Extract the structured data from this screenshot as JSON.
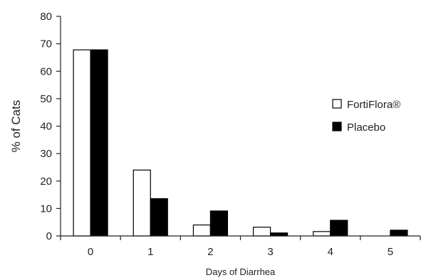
{
  "chart_data": {
    "type": "bar",
    "title": "",
    "xlabel": "Days of Diarrhea",
    "ylabel": "% of Cats",
    "ylim": [
      0,
      80
    ],
    "yticks": [
      0,
      10,
      20,
      30,
      40,
      50,
      60,
      70,
      80
    ],
    "categories": [
      "0",
      "1",
      "2",
      "3",
      "4",
      "5"
    ],
    "series": [
      {
        "name": "FortiFlora®",
        "values": [
          67.8,
          24,
          4,
          3.2,
          1.6,
          0
        ],
        "color": "#ffffff"
      },
      {
        "name": "Placebo",
        "values": [
          67.8,
          13.6,
          9.1,
          1.1,
          5.7,
          2.1
        ],
        "color": "#000000"
      }
    ],
    "grid": false,
    "legend": "right"
  }
}
